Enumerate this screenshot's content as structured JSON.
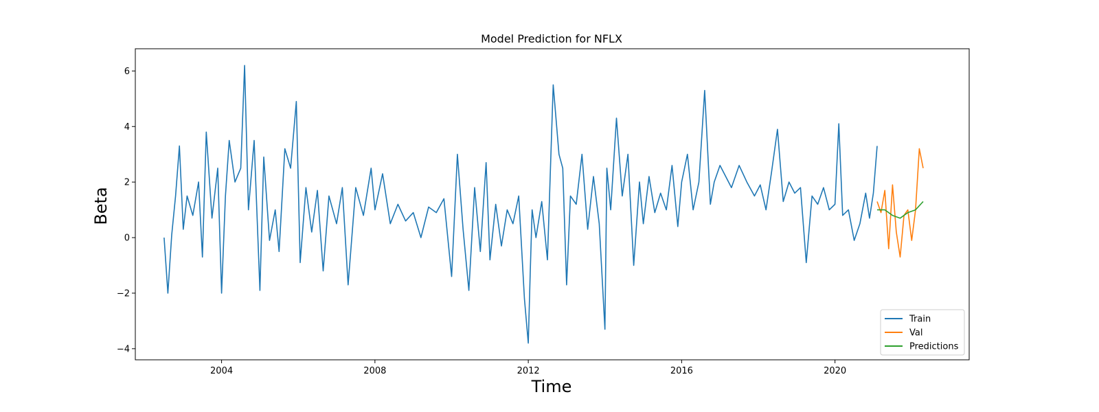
{
  "chart_data": {
    "type": "line",
    "title": "Model Prediction for NFLX",
    "xlabel": "Time",
    "ylabel": "Beta",
    "xlim": [
      2001.75,
      2023.5
    ],
    "ylim": [
      -4.4,
      6.8
    ],
    "x_ticks": [
      2004,
      2008,
      2012,
      2016,
      2020
    ],
    "x_tick_labels": [
      "2004",
      "2008",
      "2012",
      "2016",
      "2020"
    ],
    "y_ticks": [
      -4,
      -2,
      0,
      2,
      4,
      6
    ],
    "y_tick_labels": [
      "−4",
      "−2",
      "0",
      "2",
      "4",
      "6"
    ],
    "grid": false,
    "legend_position": "lower-right",
    "colors": {
      "Train": "#1f77b4",
      "Val": "#ff7f0e",
      "Predictions": "#2ca02c"
    },
    "series": [
      {
        "name": "Train",
        "color": "#1f77b4",
        "x": [
          2002.5,
          2002.6,
          2002.7,
          2002.8,
          2002.9,
          2003.0,
          2003.1,
          2003.25,
          2003.4,
          2003.5,
          2003.6,
          2003.75,
          2003.9,
          2004.0,
          2004.1,
          2004.2,
          2004.35,
          2004.5,
          2004.6,
          2004.7,
          2004.85,
          2005.0,
          2005.1,
          2005.25,
          2005.4,
          2005.5,
          2005.65,
          2005.8,
          2005.95,
          2006.05,
          2006.2,
          2006.35,
          2006.5,
          2006.65,
          2006.8,
          2007.0,
          2007.15,
          2007.3,
          2007.5,
          2007.7,
          2007.9,
          2008.0,
          2008.2,
          2008.4,
          2008.6,
          2008.8,
          2009.0,
          2009.2,
          2009.4,
          2009.6,
          2009.8,
          2010.0,
          2010.15,
          2010.3,
          2010.45,
          2010.6,
          2010.75,
          2010.9,
          2011.0,
          2011.15,
          2011.3,
          2011.45,
          2011.6,
          2011.75,
          2011.9,
          2012.0,
          2012.05,
          2012.1,
          2012.2,
          2012.35,
          2012.5,
          2012.65,
          2012.8,
          2012.9,
          2013.0,
          2013.1,
          2013.25,
          2013.4,
          2013.55,
          2013.7,
          2013.85,
          2014.0,
          2014.05,
          2014.15,
          2014.3,
          2014.45,
          2014.6,
          2014.75,
          2014.9,
          2015.0,
          2015.15,
          2015.3,
          2015.45,
          2015.6,
          2015.75,
          2015.9,
          2016.0,
          2016.15,
          2016.3,
          2016.45,
          2016.6,
          2016.75,
          2016.85,
          2017.0,
          2017.15,
          2017.3,
          2017.5,
          2017.7,
          2017.9,
          2018.05,
          2018.2,
          2018.35,
          2018.5,
          2018.65,
          2018.8,
          2018.95,
          2019.1,
          2019.25,
          2019.4,
          2019.55,
          2019.7,
          2019.85,
          2020.0,
          2020.1,
          2020.2,
          2020.35,
          2020.5,
          2020.65,
          2020.8,
          2020.9,
          2021.0,
          2021.1
        ],
        "values": [
          0.0,
          -2.0,
          0.1,
          1.5,
          3.3,
          0.3,
          1.5,
          0.8,
          2.0,
          -0.7,
          3.8,
          0.7,
          2.5,
          -2.0,
          1.5,
          3.5,
          2.0,
          2.5,
          6.2,
          1.0,
          3.5,
          -1.9,
          2.9,
          -0.1,
          1.0,
          -0.5,
          3.2,
          2.5,
          4.9,
          -0.9,
          1.8,
          0.2,
          1.7,
          -1.2,
          1.5,
          0.5,
          1.8,
          -1.7,
          1.8,
          0.8,
          2.5,
          1.0,
          2.3,
          0.5,
          1.2,
          0.6,
          0.9,
          0.0,
          1.1,
          0.9,
          1.4,
          -1.4,
          3.0,
          0.3,
          -1.9,
          1.8,
          -0.5,
          2.7,
          -0.8,
          1.2,
          -0.3,
          1.0,
          0.5,
          1.5,
          -2.2,
          -3.8,
          -1.3,
          1.0,
          0.0,
          1.3,
          -0.8,
          5.5,
          3.0,
          2.5,
          -1.7,
          1.5,
          1.2,
          3.0,
          0.3,
          2.2,
          0.5,
          -3.3,
          2.5,
          1.0,
          4.3,
          1.5,
          3.0,
          -1.0,
          2.0,
          0.5,
          2.2,
          0.9,
          1.6,
          1.0,
          2.6,
          0.4,
          2.0,
          3.0,
          1.0,
          2.0,
          5.3,
          1.2,
          2.0,
          2.6,
          2.2,
          1.8,
          2.6,
          2.0,
          1.5,
          1.9,
          1.0,
          2.4,
          3.9,
          1.3,
          2.0,
          1.6,
          1.8,
          -0.9,
          1.5,
          1.2,
          1.8,
          1.0,
          1.2,
          4.1,
          0.8,
          1.0,
          -0.1,
          0.5,
          1.6,
          0.7,
          1.6,
          3.3
        ]
      },
      {
        "name": "Val",
        "color": "#ff7f0e",
        "x": [
          2021.1,
          2021.2,
          2021.3,
          2021.4,
          2021.5,
          2021.6,
          2021.7,
          2021.8,
          2021.9,
          2022.0,
          2022.1,
          2022.2,
          2022.3
        ],
        "values": [
          1.3,
          0.9,
          1.7,
          -0.4,
          1.9,
          0.2,
          -0.7,
          0.8,
          1.0,
          -0.1,
          1.0,
          3.2,
          2.5
        ]
      },
      {
        "name": "Predictions",
        "color": "#2ca02c",
        "x": [
          2021.1,
          2021.3,
          2021.5,
          2021.7,
          2021.9,
          2022.1,
          2022.3
        ],
        "values": [
          1.0,
          1.0,
          0.8,
          0.7,
          0.9,
          1.0,
          1.3
        ]
      }
    ]
  }
}
